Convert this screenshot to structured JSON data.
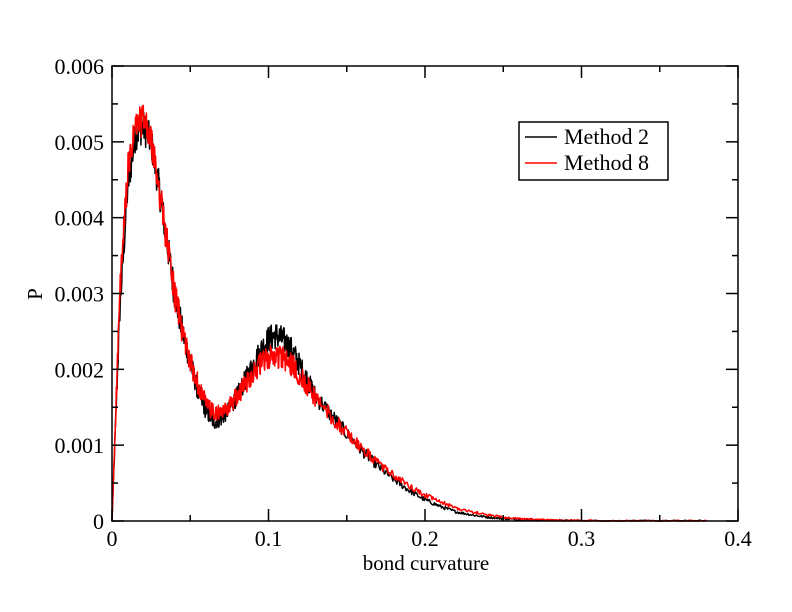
{
  "chart_data": {
    "type": "line",
    "xlabel": "bond curvature",
    "ylabel": "P",
    "xlim": [
      0,
      0.4
    ],
    "ylim": [
      0,
      0.006
    ],
    "x_ticks": [
      "0",
      "0.1",
      "0.2",
      "0.3",
      "0.4"
    ],
    "y_ticks": [
      "0",
      "0.001",
      "0.002",
      "0.003",
      "0.004",
      "0.005",
      "0.006"
    ],
    "grid": false,
    "legend_position": "top-right",
    "series": [
      {
        "name": "Method 2",
        "color": "#000000",
        "x": [
          0.0,
          0.005,
          0.01,
          0.015,
          0.02,
          0.025,
          0.03,
          0.035,
          0.04,
          0.045,
          0.05,
          0.055,
          0.06,
          0.065,
          0.07,
          0.075,
          0.08,
          0.085,
          0.09,
          0.095,
          0.1,
          0.105,
          0.11,
          0.115,
          0.12,
          0.125,
          0.13,
          0.14,
          0.15,
          0.16,
          0.17,
          0.18,
          0.19,
          0.2,
          0.21,
          0.22,
          0.23,
          0.24,
          0.25,
          0.26,
          0.27,
          0.28,
          0.29,
          0.3,
          0.32,
          0.34,
          0.36,
          0.38
        ],
        "y": [
          0.0,
          0.0028,
          0.0044,
          0.0051,
          0.0052,
          0.005,
          0.0044,
          0.0037,
          0.003,
          0.0025,
          0.0021,
          0.0017,
          0.00145,
          0.0013,
          0.00135,
          0.00148,
          0.00165,
          0.00185,
          0.00205,
          0.00225,
          0.0024,
          0.00245,
          0.00238,
          0.00225,
          0.00205,
          0.00185,
          0.00165,
          0.0014,
          0.00115,
          0.00092,
          0.00072,
          0.00055,
          0.0004,
          0.00028,
          0.00019,
          0.00012,
          8e-05,
          5e-05,
          3e-05,
          2e-05,
          1e-05,
          1e-05,
          5e-06,
          3e-06,
          0.0,
          0.0,
          0.0,
          0.0
        ]
      },
      {
        "name": "Method 8",
        "color": "#ff0000",
        "x": [
          0.0,
          0.005,
          0.01,
          0.015,
          0.02,
          0.025,
          0.03,
          0.035,
          0.04,
          0.045,
          0.05,
          0.055,
          0.06,
          0.065,
          0.07,
          0.075,
          0.08,
          0.085,
          0.09,
          0.095,
          0.1,
          0.105,
          0.11,
          0.115,
          0.12,
          0.125,
          0.13,
          0.14,
          0.15,
          0.16,
          0.17,
          0.18,
          0.19,
          0.2,
          0.21,
          0.22,
          0.23,
          0.24,
          0.25,
          0.26,
          0.27,
          0.28,
          0.29,
          0.3,
          0.32,
          0.34,
          0.36,
          0.38
        ],
        "y": [
          0.0,
          0.003,
          0.0046,
          0.0052,
          0.0053,
          0.005,
          0.0044,
          0.0037,
          0.003,
          0.0025,
          0.0021,
          0.0018,
          0.00155,
          0.00142,
          0.00142,
          0.00152,
          0.00165,
          0.0018,
          0.00195,
          0.00207,
          0.00215,
          0.00218,
          0.00213,
          0.00205,
          0.00192,
          0.00178,
          0.00162,
          0.00138,
          0.00116,
          0.00095,
          0.00076,
          0.0006,
          0.00046,
          0.00034,
          0.00025,
          0.00017,
          0.00012,
          8e-05,
          5e-05,
          3e-05,
          2e-05,
          1.5e-05,
          1e-05,
          7e-06,
          3e-06,
          1e-06,
          0.0,
          0.0
        ]
      }
    ]
  }
}
